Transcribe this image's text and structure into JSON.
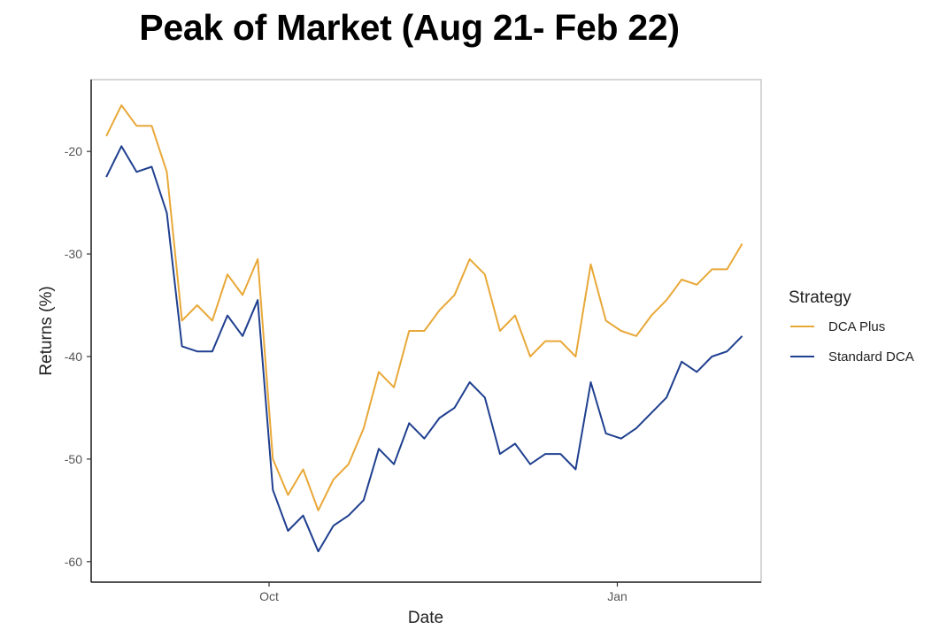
{
  "chart_data": {
    "type": "line",
    "title": "Peak of Market (Aug 21- Feb 22)",
    "xlabel": "Date",
    "ylabel": "Returns (%)",
    "x_ticks": [
      {
        "label": "Oct",
        "date": "2021-10-01"
      },
      {
        "label": "Jan",
        "date": "2022-01-01"
      }
    ],
    "xlim": [
      "2021-08-15",
      "2022-02-08"
    ],
    "ylim": [
      -62,
      -13
    ],
    "y_ticks": [
      -60,
      -50,
      -40,
      -30,
      -20
    ],
    "grid": false,
    "legend": {
      "title": "Strategy",
      "position": "right"
    },
    "colors": {
      "DCA Plus": "#e8a838",
      "Standard DCA": "#1f3f8f"
    },
    "x": [
      "2021-08-19",
      "2021-08-23",
      "2021-08-27",
      "2021-08-31",
      "2021-09-04",
      "2021-09-08",
      "2021-09-12",
      "2021-09-16",
      "2021-09-20",
      "2021-09-24",
      "2021-09-28",
      "2021-10-02",
      "2021-10-06",
      "2021-10-10",
      "2021-10-14",
      "2021-10-18",
      "2021-10-22",
      "2021-10-26",
      "2021-10-30",
      "2021-11-03",
      "2021-11-07",
      "2021-11-11",
      "2021-11-15",
      "2021-11-19",
      "2021-11-23",
      "2021-11-27",
      "2021-12-01",
      "2021-12-05",
      "2021-12-09",
      "2021-12-13",
      "2021-12-17",
      "2021-12-21",
      "2021-12-25",
      "2021-12-29",
      "2022-01-02",
      "2022-01-06",
      "2022-01-10",
      "2022-01-14",
      "2022-01-18",
      "2022-01-22",
      "2022-01-26",
      "2022-01-30",
      "2022-02-03"
    ],
    "series": [
      {
        "name": "DCA Plus",
        "values": [
          -18.5,
          -15.5,
          -17.5,
          -17.5,
          -22.0,
          -36.5,
          -35.0,
          -36.5,
          -32.0,
          -34.0,
          -30.5,
          -50.0,
          -53.5,
          -51.0,
          -55.0,
          -52.0,
          -50.5,
          -47.0,
          -41.5,
          -43.0,
          -37.5,
          -37.5,
          -35.5,
          -34.0,
          -30.5,
          -32.0,
          -37.5,
          -36.0,
          -40.0,
          -38.5,
          -38.5,
          -40.0,
          -31.0,
          -36.5,
          -37.5,
          -38.0,
          -36.0,
          -34.5,
          -32.5,
          -33.0,
          -31.5,
          -31.5,
          -29.0
        ]
      },
      {
        "name": "Standard DCA",
        "values": [
          -22.5,
          -19.5,
          -22.0,
          -21.5,
          -26.0,
          -39.0,
          -39.5,
          -39.5,
          -36.0,
          -38.0,
          -34.5,
          -53.0,
          -57.0,
          -55.5,
          -59.0,
          -56.5,
          -55.5,
          -54.0,
          -49.0,
          -50.5,
          -46.5,
          -48.0,
          -46.0,
          -45.0,
          -42.5,
          -44.0,
          -49.5,
          -48.5,
          -50.5,
          -49.5,
          -49.5,
          -51.0,
          -42.5,
          -47.5,
          -48.0,
          -47.0,
          -45.5,
          -44.0,
          -40.5,
          -41.5,
          -40.0,
          -39.5,
          -38.0
        ]
      }
    ]
  }
}
